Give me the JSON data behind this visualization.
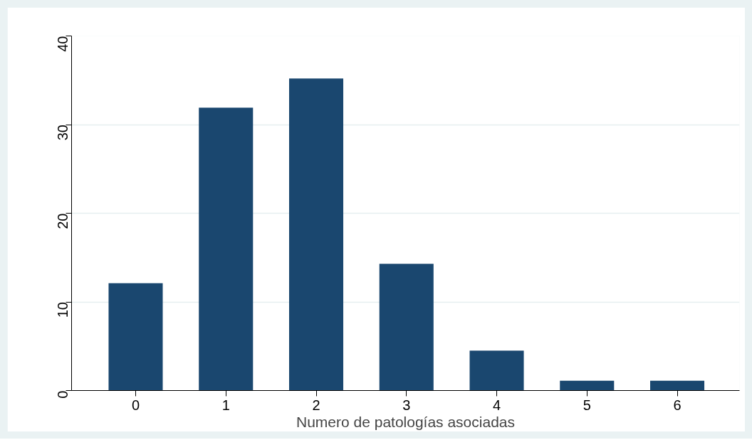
{
  "chart_data": {
    "type": "bar",
    "xlabel": "Numero de patologías asociadas",
    "categories": [
      "0",
      "1",
      "2",
      "3",
      "4",
      "5",
      "6"
    ],
    "values": [
      12.1,
      31.9,
      35.2,
      14.3,
      4.5,
      1.1,
      1.1
    ],
    "color": "#1a476f",
    "ylim": [
      0,
      40
    ],
    "yticks": [
      0,
      10,
      20,
      30,
      40
    ],
    "grid": "y"
  }
}
